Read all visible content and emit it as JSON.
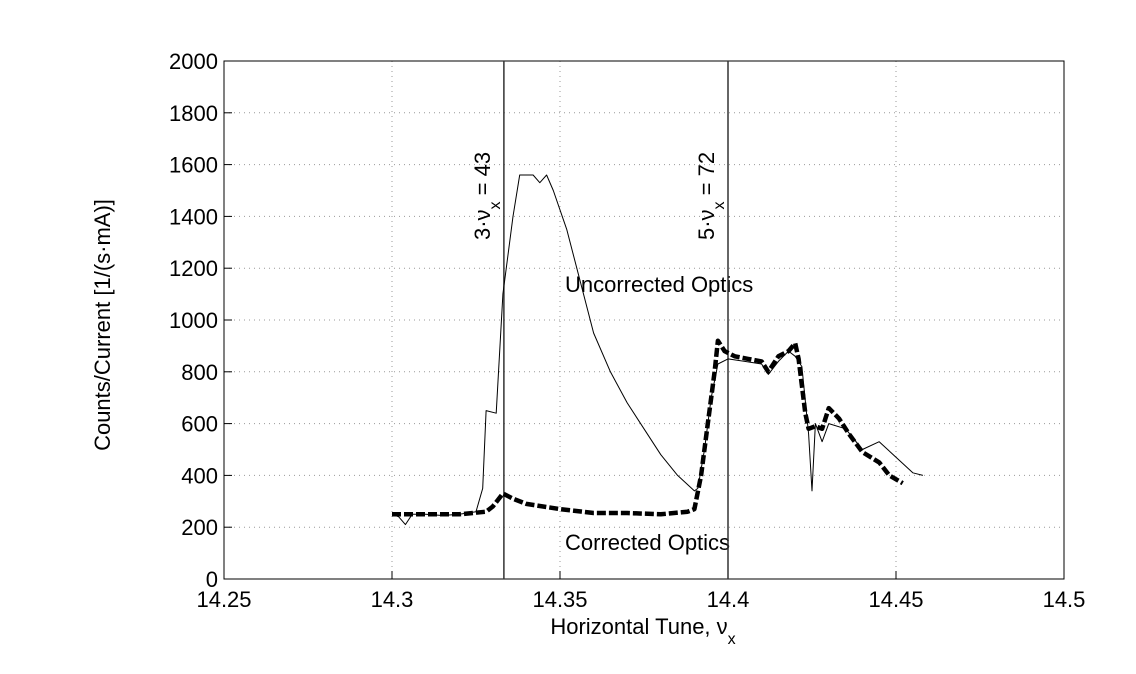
{
  "chart_data": {
    "type": "line",
    "xlabel": "Horizontal Tune, ν",
    "xlabel_sub": "x",
    "ylabel": "Counts/Current [1/(s·mA)]",
    "xlim": [
      14.25,
      14.5
    ],
    "xticks": [
      14.25,
      14.3,
      14.35,
      14.4,
      14.45,
      14.5
    ],
    "ylim": [
      0,
      2000
    ],
    "yticks": [
      0,
      200,
      400,
      600,
      800,
      1000,
      1200,
      1400,
      1600,
      1800,
      2000
    ],
    "grid": true,
    "resonances": [
      {
        "x": 14.3333,
        "text": "3·ν",
        "sub": "x",
        "rest": " = 43"
      },
      {
        "x": 14.4,
        "text": "5·ν",
        "sub": "x",
        "rest": " = 72"
      }
    ],
    "series": [
      {
        "name": "Uncorrected Optics",
        "color": "#000000",
        "style": "solid",
        "x": [
          14.3,
          14.302,
          14.304,
          14.306,
          14.31,
          14.315,
          14.32,
          14.325,
          14.327,
          14.328,
          14.331,
          14.333,
          14.336,
          14.338,
          14.342,
          14.344,
          14.346,
          14.348,
          14.352,
          14.356,
          14.36,
          14.365,
          14.37,
          14.375,
          14.38,
          14.385,
          14.39,
          14.391,
          14.393,
          14.395,
          14.397,
          14.4,
          14.405,
          14.41,
          14.412,
          14.415,
          14.418,
          14.42,
          14.422,
          14.424,
          14.425,
          14.426,
          14.428,
          14.43,
          14.435,
          14.44,
          14.445,
          14.45,
          14.455,
          14.458
        ],
        "values": [
          250,
          240,
          210,
          250,
          250,
          245,
          250,
          260,
          350,
          650,
          640,
          1100,
          1400,
          1560,
          1560,
          1530,
          1560,
          1500,
          1350,
          1150,
          950,
          800,
          680,
          580,
          480,
          400,
          340,
          350,
          500,
          700,
          830,
          850,
          840,
          830,
          790,
          840,
          880,
          860,
          820,
          560,
          340,
          600,
          530,
          600,
          580,
          500,
          530,
          470,
          410,
          400
        ]
      },
      {
        "name": "Corrected Optics",
        "color": "#000000",
        "style": "dashed",
        "x": [
          14.3,
          14.31,
          14.32,
          14.328,
          14.33,
          14.333,
          14.336,
          14.34,
          14.35,
          14.36,
          14.37,
          14.38,
          14.388,
          14.39,
          14.392,
          14.394,
          14.396,
          14.397,
          14.399,
          14.402,
          14.406,
          14.41,
          14.412,
          14.415,
          14.418,
          14.42,
          14.421,
          14.423,
          14.424,
          14.426,
          14.428,
          14.43,
          14.433,
          14.436,
          14.44,
          14.445,
          14.448,
          14.452
        ],
        "values": [
          250,
          250,
          250,
          260,
          280,
          330,
          310,
          290,
          270,
          255,
          255,
          250,
          260,
          270,
          400,
          600,
          800,
          920,
          880,
          860,
          850,
          840,
          800,
          860,
          880,
          910,
          850,
          640,
          580,
          590,
          580,
          660,
          620,
          560,
          490,
          450,
          400,
          370
        ]
      }
    ]
  }
}
